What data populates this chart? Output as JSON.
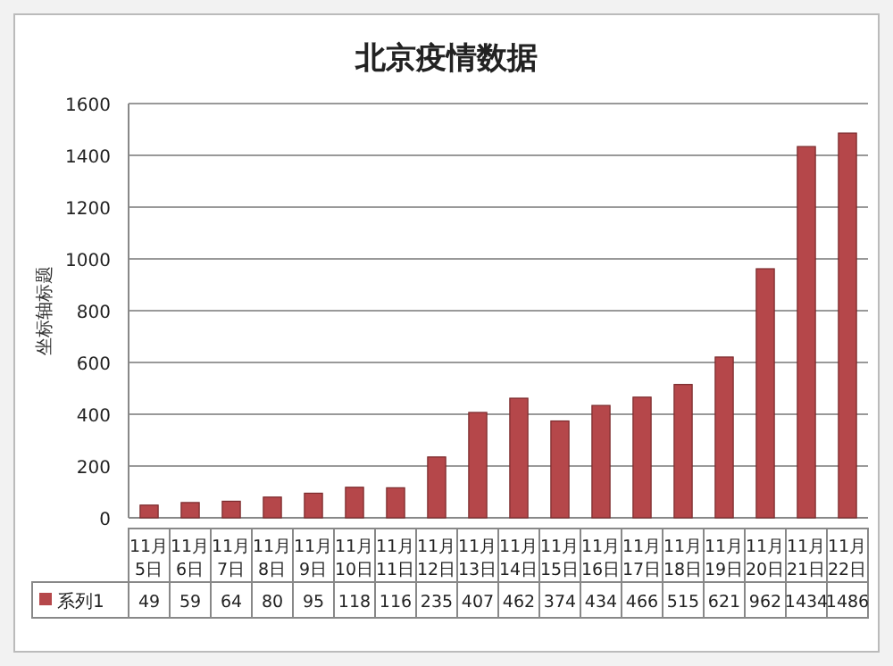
{
  "chart_data": {
    "type": "bar",
    "title": "北京疫情数据",
    "ylabel": "坐标轴标题",
    "categories": [
      "11月5日",
      "11月6日",
      "11月7日",
      "11月8日",
      "11月9日",
      "11月10日",
      "11月11日",
      "11月12日",
      "11月13日",
      "11月14日",
      "11月15日",
      "11月16日",
      "11月17日",
      "11月18日",
      "11月19日",
      "11月20日",
      "11月21日",
      "11月22日"
    ],
    "series": [
      {
        "name": "系列1",
        "color": "#b5474a",
        "values": [
          49,
          59,
          64,
          80,
          95,
          118,
          116,
          235,
          407,
          462,
          374,
          434,
          466,
          515,
          621,
          962,
          1434,
          1486
        ]
      }
    ],
    "ylim": [
      0,
      1600
    ],
    "yticks": [
      0,
      200,
      400,
      600,
      800,
      1000,
      1200,
      1400,
      1600
    ],
    "grid": "y",
    "data_labels": true,
    "legend": "bottom"
  }
}
